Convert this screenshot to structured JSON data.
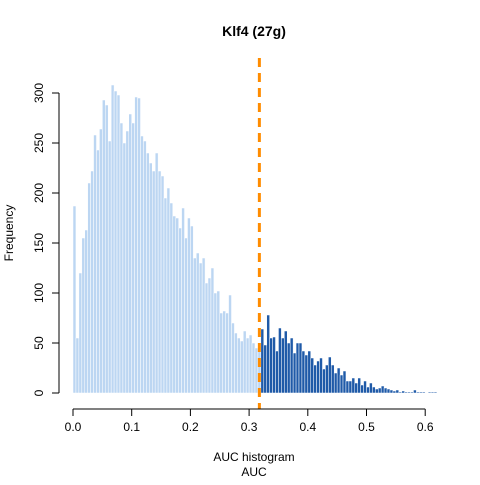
{
  "chart_data": {
    "type": "bar",
    "title": "Klf4 (27g)",
    "xlabel_line1": "AUC histogram",
    "xlabel_line2": "AUC",
    "ylabel": "Frequency",
    "xlim": [
      0.0,
      0.62
    ],
    "ylim": [
      0,
      320
    ],
    "x_ticks": [
      "0.0",
      "0.1",
      "0.2",
      "0.3",
      "0.4",
      "0.5",
      "0.6"
    ],
    "y_ticks": [
      "0",
      "50",
      "100",
      "150",
      "200",
      "250",
      "300"
    ],
    "bin_start": 0.0,
    "bin_width": 0.005,
    "threshold": 0.3175,
    "colors": {
      "below_threshold": "#bcd6f2",
      "above_threshold": "#1f5aa8",
      "threshold_line": "#ff8c00",
      "bar_edge": "#ffffff"
    },
    "values": [
      187,
      55,
      120,
      155,
      163,
      210,
      222,
      258,
      243,
      264,
      293,
      288,
      252,
      308,
      302,
      298,
      270,
      250,
      262,
      279,
      270,
      296,
      295,
      257,
      252,
      240,
      230,
      222,
      240,
      222,
      217,
      195,
      205,
      190,
      177,
      175,
      165,
      185,
      155,
      175,
      167,
      135,
      140,
      130,
      135,
      110,
      115,
      125,
      100,
      102,
      80,
      82,
      80,
      98,
      70,
      60,
      55,
      52,
      62,
      55,
      58,
      50,
      45,
      46,
      64,
      48,
      78,
      55,
      56,
      42,
      65,
      55,
      62,
      50,
      55,
      40,
      50,
      50,
      42,
      38,
      42,
      35,
      28,
      32,
      35,
      24,
      28,
      36,
      28,
      20,
      25,
      18,
      22,
      12,
      12,
      15,
      10,
      15,
      8,
      12,
      6,
      10,
      6,
      4,
      5,
      7,
      5,
      4,
      3,
      2,
      3,
      1,
      2,
      1,
      1,
      1,
      3,
      1,
      1,
      1,
      0,
      1,
      1,
      1
    ]
  }
}
